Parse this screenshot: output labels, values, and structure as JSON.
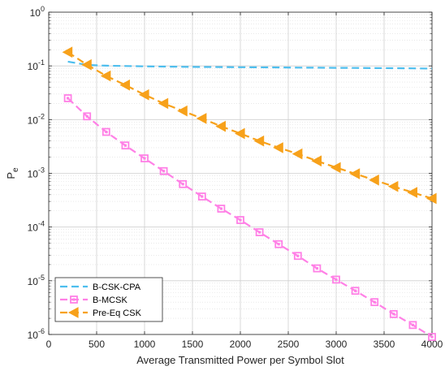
{
  "chart_data": {
    "type": "line",
    "xlabel": "Average Transmitted Power per Symbol Slot",
    "ylabel_base": "P",
    "ylabel_sub": "e",
    "xlim": [
      0,
      4000
    ],
    "ylim_exp": [
      -6,
      0
    ],
    "yscale": "log",
    "grid": true,
    "minor_grid": true,
    "legend_position": "bottom-left",
    "x_ticks": [
      0,
      500,
      1000,
      1500,
      2000,
      2500,
      3000,
      3500,
      4000
    ],
    "x_tick_labels": [
      "0",
      "500",
      "1000",
      "1500",
      "2000",
      "2500",
      "3000",
      "3500",
      "4000"
    ],
    "y_tick_exponents": [
      0,
      -1,
      -2,
      -3,
      -4,
      -5,
      -6
    ],
    "y_tick_base": "10",
    "y_tick_sups": [
      "0",
      "-1",
      "-2",
      "-3",
      "-4",
      "-5",
      "-6"
    ],
    "series": [
      {
        "name": "B-CSK-CPA",
        "color": "#4DBEEE",
        "marker": "none",
        "x": [
          200,
          400,
          600,
          800,
          1000,
          1200,
          1400,
          1600,
          1800,
          2000,
          2200,
          2400,
          2600,
          2800,
          3000,
          3200,
          3400,
          3600,
          3800,
          4000
        ],
        "y": [
          0.12,
          0.104,
          0.101,
          0.0995,
          0.098,
          0.097,
          0.096,
          0.0955,
          0.095,
          0.0945,
          0.094,
          0.0935,
          0.093,
          0.0925,
          0.092,
          0.0915,
          0.091,
          0.0905,
          0.09,
          0.089
        ]
      },
      {
        "name": "B-MCSK",
        "color": "#FF80E6",
        "marker": "square",
        "x": [
          200,
          400,
          600,
          800,
          1000,
          1200,
          1400,
          1600,
          1800,
          2000,
          2200,
          2400,
          2600,
          2800,
          3000,
          3200,
          3400,
          3600,
          3800,
          4000
        ],
        "y": [
          0.025,
          0.0115,
          0.0059,
          0.0033,
          0.0019,
          0.0011,
          0.00063,
          0.00037,
          0.00022,
          0.000135,
          8e-05,
          4.8e-05,
          2.9e-05,
          1.7e-05,
          1.05e-05,
          6.5e-06,
          4e-06,
          2.4e-06,
          1.5e-06,
          9e-07
        ]
      },
      {
        "name": "Pre-Eq CSK",
        "color": "#F7A11A",
        "marker": "triangle-left",
        "x": [
          200,
          400,
          600,
          800,
          1000,
          1200,
          1400,
          1600,
          1800,
          2000,
          2200,
          2400,
          2600,
          2800,
          3000,
          3200,
          3400,
          3600,
          3800,
          4000
        ],
        "y": [
          0.18,
          0.105,
          0.065,
          0.044,
          0.029,
          0.02,
          0.0145,
          0.0105,
          0.0075,
          0.0055,
          0.004,
          0.003,
          0.0023,
          0.0017,
          0.00128,
          0.00098,
          0.00075,
          0.00057,
          0.00044,
          0.00034
        ]
      }
    ]
  }
}
